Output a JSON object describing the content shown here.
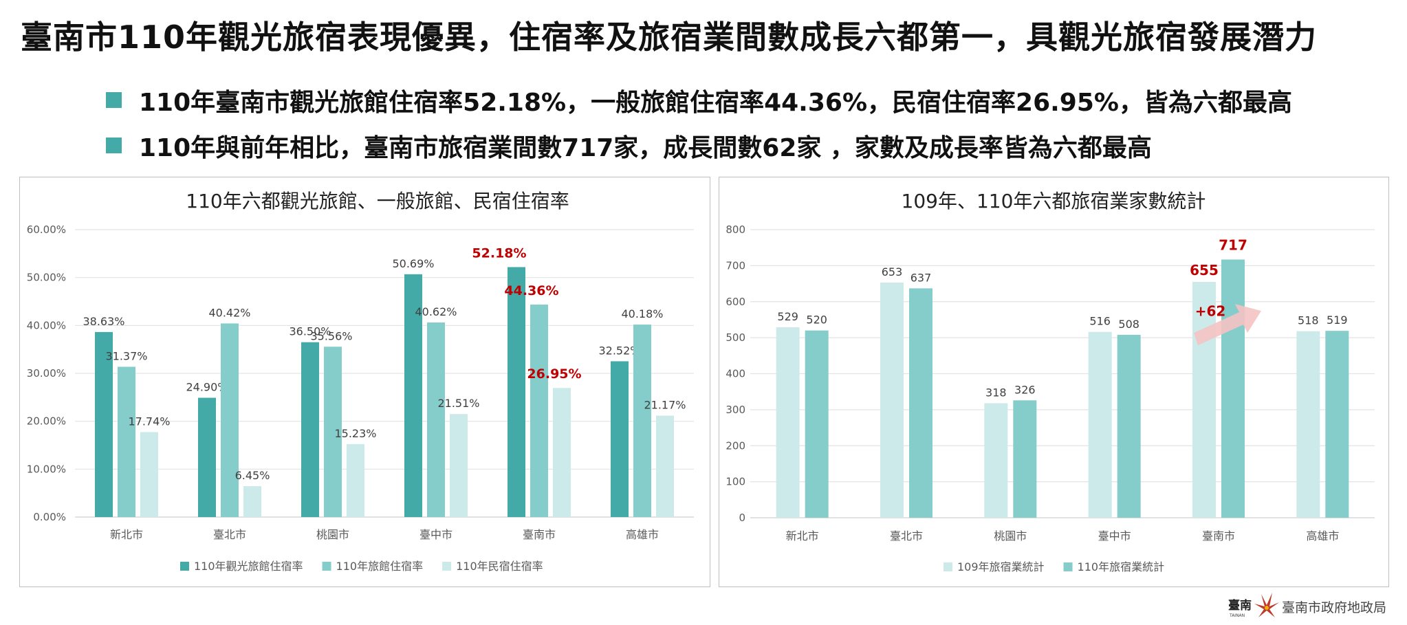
{
  "title": "臺南市110年觀光旅宿表現優異，住宿率及旅宿業間數成長六都第一，具觀光旅宿發展潛力",
  "bullets": [
    "110年臺南市觀光旅館住宿率52.18%，一般旅館住宿率44.36%，民宿住宿率26.95%，皆為六都最高",
    "110年與前年相比，臺南市旅宿業間數717家，成長間數62家 ，家數及成長率皆為六都最高"
  ],
  "colors": {
    "dark": "#44aaa7",
    "mid": "#84cdca",
    "light": "#cdeaea",
    "highlight": "#c00000",
    "arrow": "#f5c3c3",
    "bullet": "#44aaa7"
  },
  "chart_data": [
    {
      "type": "bar",
      "title": "110年六都觀光旅館、一般旅館、民宿住宿率",
      "categories": [
        "新北市",
        "臺北市",
        "桃園市",
        "臺中市",
        "臺南市",
        "高雄市"
      ],
      "ylim": [
        0,
        60
      ],
      "yticks": [
        "0.00%",
        "10.00%",
        "20.00%",
        "30.00%",
        "40.00%",
        "50.00%",
        "60.00%"
      ],
      "series": [
        {
          "name": "110年觀光旅館住宿率",
          "values": [
            38.63,
            24.9,
            36.5,
            50.69,
            52.18,
            32.52
          ],
          "labels": [
            "38.63%",
            "24.90%",
            "36.50%",
            "50.69%",
            "52.18%",
            "32.52%"
          ],
          "color": "#44aaa7"
        },
        {
          "name": "110年旅館住宿率",
          "values": [
            31.37,
            40.42,
            35.56,
            40.62,
            44.36,
            40.18
          ],
          "labels": [
            "31.37%",
            "40.42%",
            "35.56%",
            "40.62%",
            "44.36%",
            "40.18%"
          ],
          "color": "#84cdca"
        },
        {
          "name": "110年民宿住宿率",
          "values": [
            17.74,
            6.45,
            15.23,
            21.51,
            26.95,
            21.17
          ],
          "labels": [
            "17.74%",
            "6.45%",
            "15.23%",
            "21.51%",
            "26.95%",
            "21.17%"
          ],
          "color": "#cdeaea"
        }
      ],
      "highlight_category": "臺南市",
      "grid": true,
      "legend": "bottom"
    },
    {
      "type": "bar",
      "title": "109年、110年六都旅宿業家數統計",
      "categories": [
        "新北市",
        "臺北市",
        "桃園市",
        "臺中市",
        "臺南市",
        "高雄市"
      ],
      "ylim": [
        0,
        800
      ],
      "yticks": [
        "0",
        "100",
        "200",
        "300",
        "400",
        "500",
        "600",
        "700",
        "800"
      ],
      "series": [
        {
          "name": "109年旅宿業統計",
          "values": [
            529,
            653,
            318,
            516,
            655,
            518
          ],
          "labels": [
            "529",
            "653",
            "318",
            "516",
            "655",
            "518"
          ],
          "color": "#cdeaea"
        },
        {
          "name": "110年旅宿業統計",
          "values": [
            520,
            637,
            326,
            508,
            717,
            519
          ],
          "labels": [
            "520",
            "637",
            "326",
            "508",
            "717",
            "519"
          ],
          "color": "#84cdca"
        }
      ],
      "highlight_category": "臺南市",
      "annotation": "+62",
      "grid": true,
      "legend": "bottom"
    }
  ],
  "footer": {
    "logo_text": "臺南",
    "logo_sub": "TAINAN",
    "org": "臺南市政府地政局"
  }
}
